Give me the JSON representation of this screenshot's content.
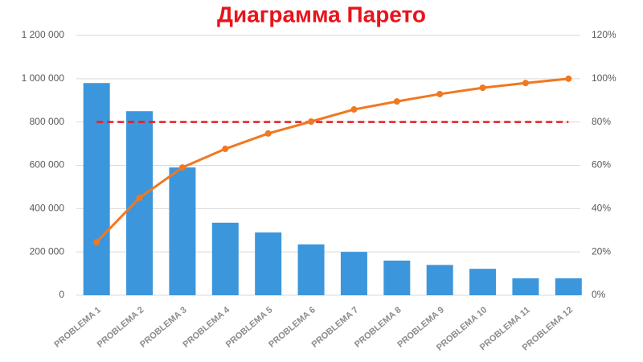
{
  "chart_data": {
    "type": "pareto",
    "title": "Диаграмма Парето",
    "categories": [
      "PROBLEMA 1",
      "PROBLEMA 2",
      "PROBLEMA 3",
      "PROBLEMA 4",
      "PROBLEMA 5",
      "PROBLEMA 6",
      "PROBLEMA 7",
      "PROBLEMA 8",
      "PROBLEMA 9",
      "PROBLEMA 10",
      "PROBLEMA 11",
      "PROBLEMA 12"
    ],
    "series": [
      {
        "color": "#3c96dc",
        "values": [
          980000,
          850000,
          590000,
          335000,
          290000,
          235000,
          200000,
          160000,
          140000,
          122000,
          78000,
          78000
        ]
      },
      {
        "color": "#f07820",
        "axis": "y2",
        "values": [
          24.5,
          45,
          59,
          67.6,
          74.7,
          80.2,
          85.8,
          89.5,
          92.9,
          95.8,
          98,
          100
        ]
      }
    ],
    "ylim": [
      0,
      1200000
    ],
    "yticks": [
      0,
      {
        "value": 200000,
        "label": "200 000"
      },
      {
        "value": 400000,
        "label": "400 000"
      },
      {
        "value": 600000,
        "label": "600 000"
      },
      {
        "value": 800000,
        "label": "800 000"
      },
      {
        "value": 1000000,
        "label": "1 000 000"
      },
      {
        "value": 1200000,
        "label": "1 200 000"
      }
    ],
    "y2lim": [
      0,
      120
    ],
    "y2ticks": [
      {
        "value": 0,
        "label": "0%"
      },
      {
        "value": 20,
        "label": "20%"
      },
      {
        "value": 40,
        "label": "40%"
      },
      {
        "value": 60,
        "label": "60%"
      },
      {
        "value": 80,
        "label": "80%"
      },
      {
        "value": 100,
        "label": "100%"
      },
      {
        "value": 120,
        "label": "120%"
      }
    ],
    "threshold": {
      "value": 80,
      "axis": "y2",
      "color": "#e02020"
    },
    "grid": true
  }
}
